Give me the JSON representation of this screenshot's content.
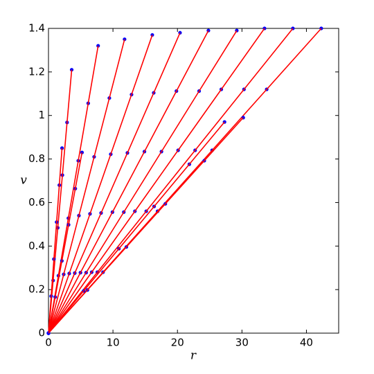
{
  "chart_data": {
    "type": "scatter-line",
    "x_label": "r",
    "y_label": "v",
    "xlim": [
      0,
      45
    ],
    "ylim": [
      0,
      1.4
    ],
    "xticks": [
      0,
      10,
      20,
      30,
      40
    ],
    "yticks": [
      0,
      0.2,
      0.4,
      0.6,
      0.8,
      1,
      1.2,
      1.4
    ],
    "marker_color": "#0000ff",
    "line_color": "#ff0000",
    "series": [
      {
        "x": [
          0,
          0.72,
          1.44,
          2.16,
          2.88,
          3.6
        ],
        "values": [
          0,
          0.242,
          0.484,
          0.726,
          0.968,
          1.21
        ]
      },
      {
        "x": [
          0,
          1.54,
          3.08,
          4.62,
          6.16,
          7.7
        ],
        "values": [
          0,
          0.264,
          0.528,
          0.792,
          1.056,
          1.32
        ]
      },
      {
        "x": [
          0,
          2.36,
          4.72,
          7.08,
          9.44,
          11.8
        ],
        "values": [
          0,
          0.27,
          0.54,
          0.81,
          1.08,
          1.35
        ]
      },
      {
        "x": [
          0,
          3.22,
          6.44,
          9.66,
          12.88,
          16.1
        ],
        "values": [
          0,
          0.274,
          0.548,
          0.822,
          1.096,
          1.37
        ]
      },
      {
        "x": [
          0,
          4.08,
          8.16,
          12.24,
          16.32,
          20.4
        ],
        "values": [
          0,
          0.276,
          0.552,
          0.828,
          1.104,
          1.38
        ]
      },
      {
        "x": [
          0,
          4.96,
          9.92,
          14.88,
          19.84,
          24.8
        ],
        "values": [
          0,
          0.278,
          0.556,
          0.834,
          1.112,
          1.39
        ]
      },
      {
        "x": [
          0,
          5.84,
          11.68,
          17.52,
          23.36,
          29.2
        ],
        "values": [
          0,
          0.278,
          0.556,
          0.834,
          1.112,
          1.39
        ]
      },
      {
        "x": [
          0,
          6.7,
          13.4,
          20.1,
          26.8,
          33.5
        ],
        "values": [
          0,
          0.28,
          0.56,
          0.84,
          1.12,
          1.4
        ]
      },
      {
        "x": [
          0,
          7.58,
          15.16,
          22.74,
          30.32,
          37.9
        ],
        "values": [
          0,
          0.28,
          0.56,
          0.84,
          1.12,
          1.4
        ]
      },
      {
        "x": [
          0,
          8.46,
          16.92,
          25.38,
          33.84,
          42.3
        ],
        "values": [
          0,
          0.28,
          0.56,
          0.84,
          1.12,
          1.4
        ]
      },
      {
        "x": [
          0,
          0.42,
          0.84,
          1.26,
          1.68,
          2.1
        ],
        "values": [
          0,
          0.17,
          0.34,
          0.51,
          0.68,
          0.85
        ]
      },
      {
        "x": [
          0,
          1.04,
          2.08,
          3.12,
          4.16,
          5.2
        ],
        "values": [
          0,
          0.166,
          0.332,
          0.498,
          0.664,
          0.83
        ]
      },
      {
        "x": [
          0,
          6.04,
          12.08,
          18.12,
          24.16,
          30.2
        ],
        "values": [
          0,
          0.198,
          0.396,
          0.594,
          0.792,
          0.99
        ]
      },
      {
        "x": [
          0,
          5.46,
          10.92,
          16.38,
          21.84,
          27.3
        ],
        "values": [
          0,
          0.194,
          0.388,
          0.582,
          0.776,
          0.97
        ]
      }
    ]
  }
}
